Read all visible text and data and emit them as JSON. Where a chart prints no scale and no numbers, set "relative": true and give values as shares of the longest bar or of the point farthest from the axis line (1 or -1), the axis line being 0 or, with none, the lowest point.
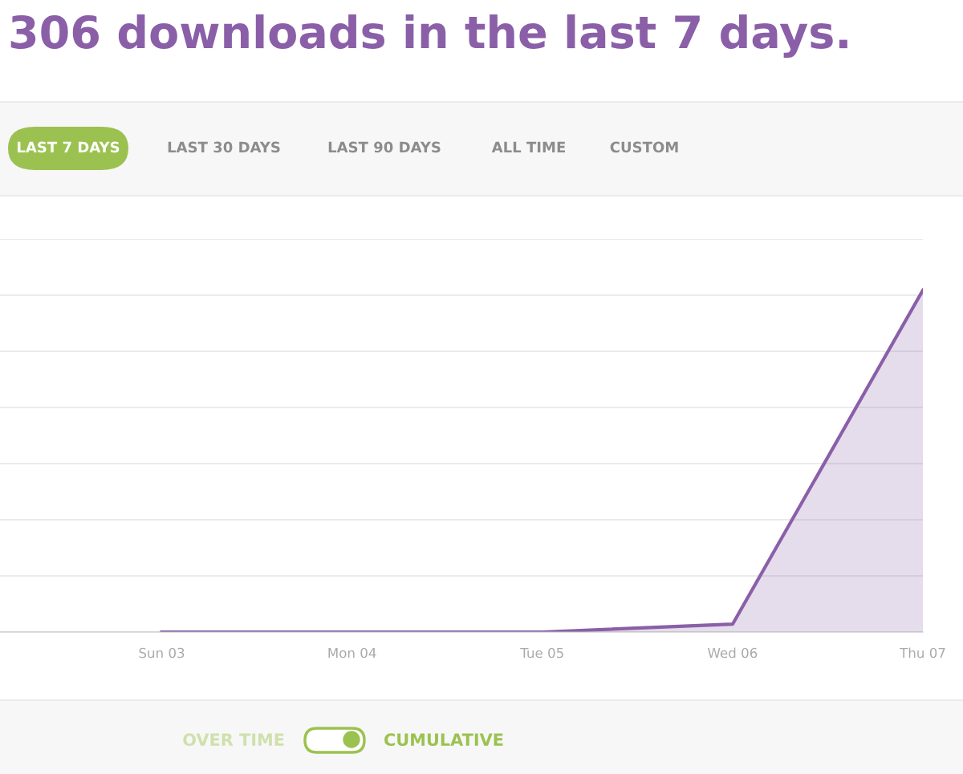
{
  "chart_data": {
    "type": "area",
    "title": "306 downloads in the last 7 days.",
    "relative": true,
    "categories": [
      "Sun 03",
      "Mon 04",
      "Tue 05",
      "Wed 06",
      "Thu 07"
    ],
    "series": [
      {
        "color": "#8a5fa8",
        "values": [
          0,
          0,
          0,
          0.023,
          1
        ]
      }
    ],
    "grid": "y",
    "annotations": [
      "LAST 7 DAYS",
      "LAST 30 DAYS",
      "LAST 90 DAYS",
      "ALL TIME",
      "CUSTOM",
      "OVER TIME",
      "CUMULATIVE"
    ]
  }
}
